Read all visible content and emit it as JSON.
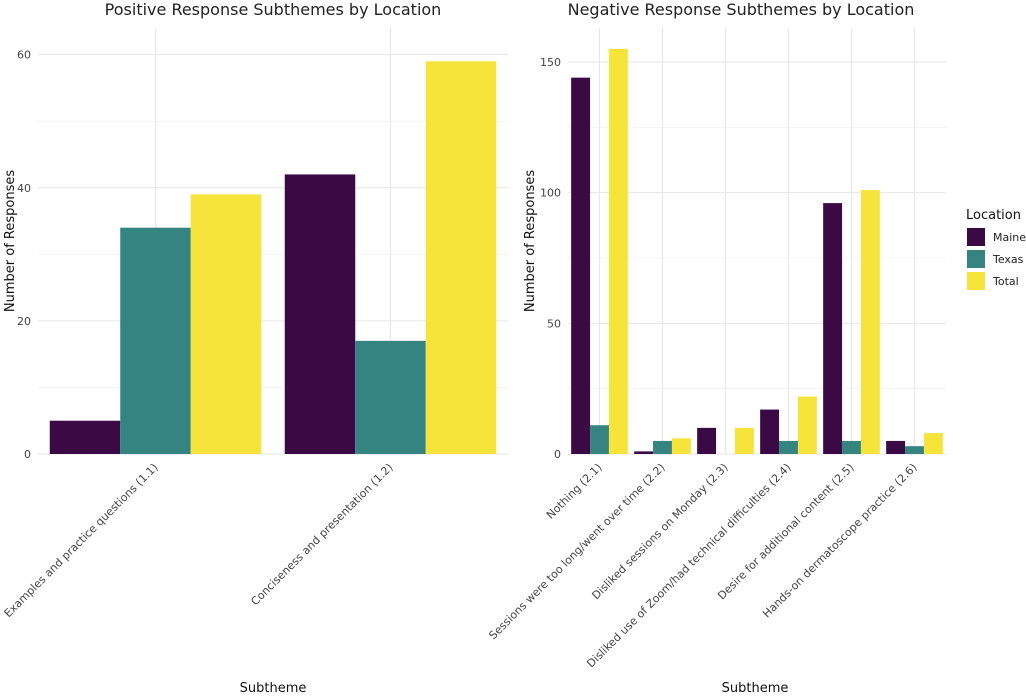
{
  "legend": {
    "title": "Location",
    "items": [
      {
        "name": "Maine",
        "color": "#3b0a45"
      },
      {
        "name": "Texas",
        "color": "#358481"
      },
      {
        "name": "Total",
        "color": "#f7e43a"
      }
    ]
  },
  "chart_data": [
    {
      "type": "bar",
      "title": "Positive Response Subthemes by Location",
      "xlabel": "Subtheme",
      "ylabel": "Number of Responses",
      "ylim": [
        0,
        64
      ],
      "yticks": [
        0,
        20,
        40,
        60
      ],
      "grid": true,
      "categories": [
        "Examples and practice questions (1.1)",
        "Conciseness and presentation (1.2)"
      ],
      "series": [
        {
          "name": "Maine",
          "values": [
            5,
            42
          ]
        },
        {
          "name": "Texas",
          "values": [
            34,
            17
          ]
        },
        {
          "name": "Total",
          "values": [
            39,
            59
          ]
        }
      ]
    },
    {
      "type": "bar",
      "title": "Negative Response Subthemes by Location",
      "xlabel": "Subtheme",
      "ylabel": "Number of Responses",
      "ylim": [
        0,
        163
      ],
      "yticks": [
        0,
        50,
        100,
        150
      ],
      "grid": true,
      "categories": [
        "Nothing (2.1)",
        "Sessions were too long/went over time (2.2)",
        "Disliked sessions on Monday (2.3)",
        "Disliked use of Zoom/had technical difficulties (2.4)",
        "Desire for additional content (2.5)",
        "Hands-on dermatoscope practice (2.6)"
      ],
      "series": [
        {
          "name": "Maine",
          "values": [
            144,
            1,
            10,
            17,
            96,
            5
          ]
        },
        {
          "name": "Texas",
          "values": [
            11,
            5,
            0,
            5,
            5,
            3
          ]
        },
        {
          "name": "Total",
          "values": [
            155,
            6,
            10,
            22,
            101,
            8
          ]
        }
      ]
    }
  ]
}
